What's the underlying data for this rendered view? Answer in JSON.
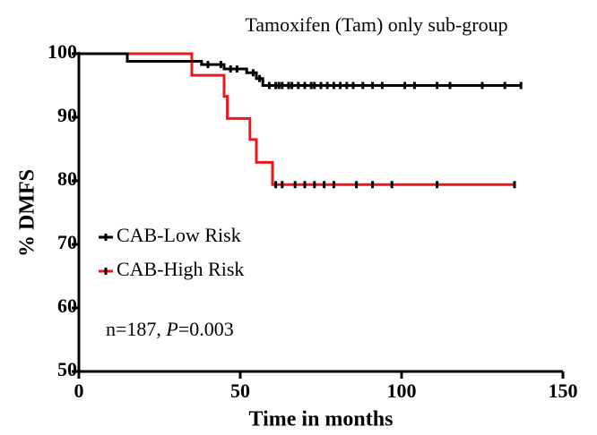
{
  "chart_data": {
    "type": "km",
    "title": "Tamoxifen (Tam) only sub-group",
    "xlabel": "Time in months",
    "ylabel": "% DMFS",
    "xlim": [
      0,
      150
    ],
    "ylim": [
      50,
      100
    ],
    "xticks": [
      0,
      50,
      100,
      150
    ],
    "yticks": [
      50,
      60,
      70,
      80,
      90,
      100
    ],
    "annotation": [
      "n=187, ",
      "P",
      "=0.003"
    ],
    "legend": "upper left",
    "series": [
      {
        "name": "CAB-Low Risk",
        "color": "#000000",
        "x": [
          0,
          15,
          38,
          45,
          52,
          55,
          57,
          137
        ],
        "values": [
          100,
          98.8,
          98.3,
          97.6,
          97,
          96.1,
          95,
          95
        ],
        "censored": {
          "x": [
            40,
            44,
            47,
            49,
            54,
            56,
            59,
            61,
            62,
            63,
            65,
            66,
            68,
            70,
            72,
            73,
            75,
            77,
            79,
            81,
            83,
            85,
            88,
            91,
            94,
            101,
            104,
            111,
            115,
            125,
            132,
            137
          ],
          "values": [
            98.3,
            98.3,
            97.6,
            97.6,
            97,
            96.1,
            95,
            95,
            95,
            95,
            95,
            95,
            95,
            95,
            95,
            95,
            95,
            95,
            95,
            95,
            95,
            95,
            95,
            95,
            95,
            95,
            95,
            95,
            95,
            95,
            95,
            95
          ]
        }
      },
      {
        "name": "CAB-High Risk",
        "color": "#e8191c",
        "x": [
          0,
          35,
          45,
          46,
          53,
          55,
          60,
          135
        ],
        "values": [
          100,
          96.6,
          93.3,
          89.8,
          86.5,
          82.9,
          79.4,
          79.4
        ],
        "censored": {
          "x": [
            61,
            63,
            67,
            70,
            73,
            76,
            79,
            86,
            91,
            97,
            111,
            135
          ],
          "values": [
            79.4,
            79.4,
            79.4,
            79.4,
            79.4,
            79.4,
            79.4,
            79.4,
            79.4,
            79.4,
            79.4,
            79.4
          ]
        }
      }
    ]
  }
}
